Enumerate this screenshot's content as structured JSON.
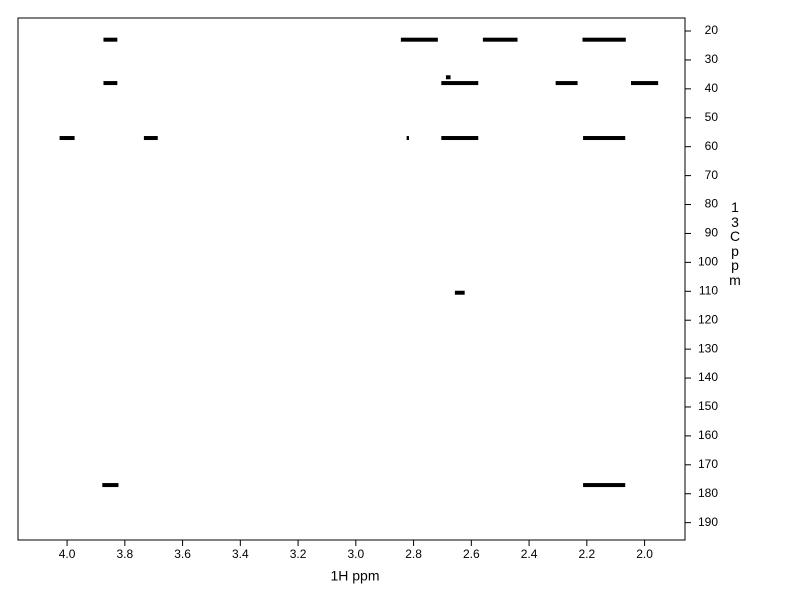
{
  "chart_data": {
    "type": "scatter",
    "xlabel": "1H ppm",
    "ylabel": "13C ppm",
    "xlim": [
      4.17,
      1.86
    ],
    "ylim": [
      15.5,
      196
    ],
    "xticks": [
      {
        "value": 4,
        "label": "4.0"
      },
      3.8,
      3.6,
      3.4,
      3.2,
      {
        "value": 3,
        "label": "3.0"
      },
      2.8,
      2.6,
      2.4,
      2.2,
      {
        "value": 2,
        "label": "2.0"
      }
    ],
    "yticks": [
      20,
      30,
      40,
      50,
      60,
      70,
      80,
      90,
      100,
      110,
      120,
      130,
      140,
      150,
      160,
      170,
      180,
      190
    ],
    "series": [
      {
        "color": "#000000",
        "x": [
          3.85,
          2.78,
          2.5,
          2.14,
          3.85,
          2.64,
          2.27,
          2.0,
          2.68,
          4.0,
          3.71,
          2.82,
          2.64,
          2.14,
          2.64,
          3.85,
          2.14
        ],
        "xerr": [
          0.024,
          0.064,
          0.06,
          0.075,
          0.024,
          0.064,
          0.038,
          0.047,
          0.008,
          0.026,
          0.024,
          0.004,
          0.064,
          0.073,
          0.017,
          0.028,
          0.073
        ],
        "values": [
          23,
          23,
          23,
          23,
          38,
          38,
          38,
          38,
          36,
          57,
          57,
          57,
          57,
          57,
          110.5,
          177,
          177
        ]
      }
    ]
  }
}
